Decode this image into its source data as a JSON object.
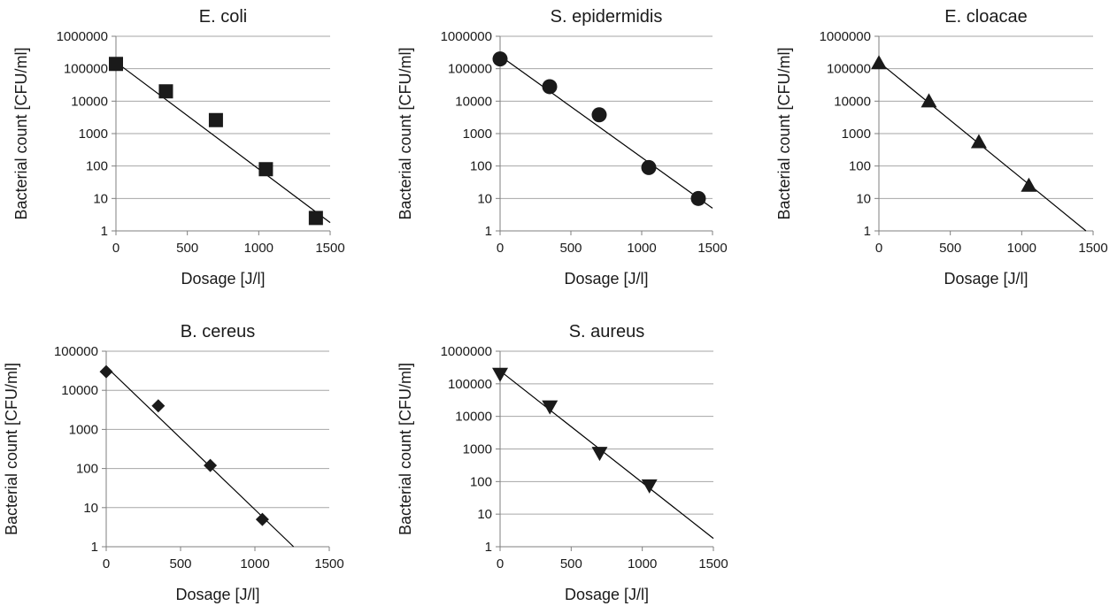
{
  "chart_data": [
    {
      "type": "scatter",
      "title": "E. coli",
      "xlabel": "Dosage [J/l]",
      "ylabel": "Bacterial count [CFU/ml]",
      "marker": "square",
      "xlim": [
        0,
        1500
      ],
      "ylim": [
        1,
        1000000
      ],
      "yscale": "log",
      "grid": true,
      "xticks": [
        "0",
        "500",
        "1000",
        "1500"
      ],
      "yticks": [
        "1",
        "10",
        "100",
        "1000",
        "10000",
        "100000",
        "1000000"
      ],
      "x": [
        0,
        350,
        700,
        1050,
        1400
      ],
      "y": [
        140000,
        20000,
        2600,
        80,
        2.5
      ],
      "trendline": {
        "x": [
          0,
          1500
        ],
        "y": [
          160000,
          1.8
        ]
      }
    },
    {
      "type": "scatter",
      "title": "S. epidermidis",
      "xlabel": "Dosage [J/l]",
      "ylabel": "Bacterial count [CFU/ml]",
      "marker": "circle",
      "xlim": [
        0,
        1500
      ],
      "ylim": [
        1,
        1000000
      ],
      "yscale": "log",
      "grid": true,
      "xticks": [
        "0",
        "500",
        "1000",
        "1500"
      ],
      "yticks": [
        "1",
        "10",
        "100",
        "1000",
        "10000",
        "100000",
        "1000000"
      ],
      "x": [
        0,
        350,
        700,
        1050,
        1400
      ],
      "y": [
        200000,
        28000,
        3800,
        90,
        10
      ],
      "trendline": {
        "x": [
          0,
          1500
        ],
        "y": [
          250000,
          5
        ]
      }
    },
    {
      "type": "scatter",
      "title": "E. cloacae",
      "xlabel": "Dosage [J/l]",
      "ylabel": "Bacterial count [CFU/ml]",
      "marker": "triangle-up",
      "xlim": [
        0,
        1500
      ],
      "ylim": [
        1,
        1000000
      ],
      "yscale": "log",
      "grid": true,
      "xticks": [
        "0",
        "500",
        "1000",
        "1500"
      ],
      "yticks": [
        "1",
        "10",
        "100",
        "1000",
        "10000",
        "100000",
        "1000000"
      ],
      "x": [
        0,
        350,
        700,
        1050
      ],
      "y": [
        150000,
        10000,
        550,
        25
      ],
      "trendline": {
        "x": [
          0,
          1450
        ],
        "y": [
          160000,
          1
        ]
      }
    },
    {
      "type": "scatter",
      "title": "B. cereus",
      "xlabel": "Dosage [J/l]",
      "ylabel": "Bacterial count [CFU/ml]",
      "marker": "diamond",
      "xlim": [
        0,
        1500
      ],
      "ylim": [
        1,
        100000
      ],
      "yscale": "log",
      "grid": true,
      "xticks": [
        "0",
        "500",
        "1000",
        "1500"
      ],
      "yticks": [
        "1",
        "10",
        "100",
        "1000",
        "10000",
        "100000"
      ],
      "x": [
        0,
        350,
        700,
        1050
      ],
      "y": [
        30000,
        4000,
        120,
        5
      ],
      "trendline": {
        "x": [
          0,
          1260
        ],
        "y": [
          40000,
          1
        ]
      }
    },
    {
      "type": "scatter",
      "title": "S. aureus",
      "xlabel": "Dosage [J/l]",
      "ylabel": "Bacterial count [CFU/ml]",
      "marker": "triangle-down",
      "xlim": [
        0,
        1500
      ],
      "ylim": [
        1,
        1000000
      ],
      "yscale": "log",
      "grid": true,
      "xticks": [
        "0",
        "500",
        "1000",
        "1500"
      ],
      "yticks": [
        "1",
        "10",
        "100",
        "1000",
        "10000",
        "100000",
        "1000000"
      ],
      "x": [
        0,
        350,
        700,
        1050
      ],
      "y": [
        200000,
        20000,
        750,
        75
      ],
      "trendline": {
        "x": [
          0,
          1500
        ],
        "y": [
          250000,
          1.8
        ]
      }
    }
  ]
}
